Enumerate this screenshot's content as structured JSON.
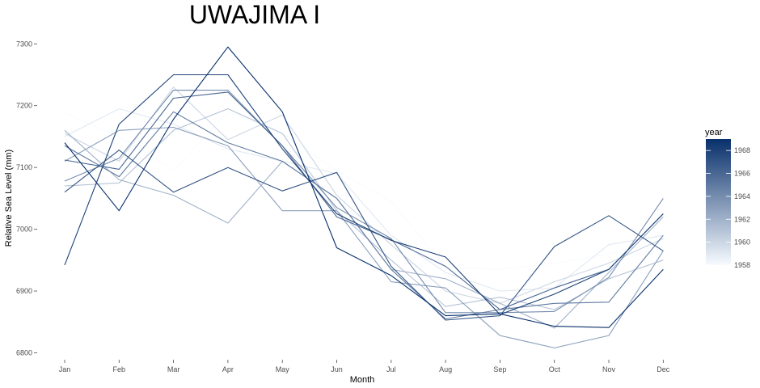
{
  "chart_data": {
    "type": "line",
    "title": "UWAJIMA I",
    "xlabel": "Month",
    "ylabel": "Relative Sea Level (mm)",
    "categories": [
      "Jan",
      "Feb",
      "Mar",
      "Apr",
      "May",
      "Jun",
      "Jul",
      "Aug",
      "Sep",
      "Oct",
      "Nov",
      "Dec"
    ],
    "ylim": [
      6790,
      7310
    ],
    "yticks": [
      6800,
      6900,
      7000,
      7100,
      7200,
      7300
    ],
    "grid": false,
    "legend": {
      "title": "year",
      "position": "right",
      "ticks": [
        1958,
        1960,
        1962,
        1964,
        1966,
        1968
      ],
      "range": [
        1958,
        1969
      ],
      "color_low": "#f7fbff",
      "color_high": "#08306b"
    },
    "series": [
      {
        "year": 1958,
        "values": [
          7188,
          7150,
          7095,
          7190,
          7155,
          7095,
          7045,
          6938,
          6935,
          6945,
          6960,
          6980
        ]
      },
      {
        "year": 1959,
        "values": [
          7150,
          7195,
          7170,
          7130,
          7110,
          7090,
          6990,
          6930,
          6900,
          6905,
          6975,
          6990
        ]
      },
      {
        "year": 1960,
        "values": [
          7155,
          7110,
          7230,
          7145,
          7185,
          7055,
          6975,
          6900,
          6880,
          6915,
          6945,
          6985
        ]
      },
      {
        "year": 1961,
        "values": [
          7070,
          7075,
          7160,
          7195,
          7155,
          7030,
          6950,
          6875,
          6890,
          6870,
          6920,
          6950
        ]
      },
      {
        "year": 1962,
        "values": [
          7160,
          7080,
          7055,
          7010,
          7110,
          7050,
          6935,
          6920,
          6880,
          6840,
          6930,
          7020
        ]
      },
      {
        "year": 1963,
        "values": [
          7110,
          7160,
          7165,
          7135,
          7030,
          7030,
          6915,
          6905,
          6828,
          6808,
          6828,
          6965
        ]
      },
      {
        "year": 1964,
        "values": [
          7078,
          7115,
          7225,
          7225,
          7135,
          7035,
          6985,
          6865,
          6865,
          6867,
          6922,
          7050
        ]
      },
      {
        "year": 1965,
        "values": [
          7135,
          7085,
          7190,
          7140,
          7110,
          7050,
          6935,
          6855,
          6870,
          6880,
          6882,
          6990
        ]
      },
      {
        "year": 1966,
        "values": [
          7112,
          7097,
          7212,
          7222,
          7135,
          7020,
          6983,
          6940,
          6870,
          6905,
          6935,
          7025
        ]
      },
      {
        "year": 1967,
        "values": [
          7060,
          7128,
          7060,
          7100,
          7062,
          7092,
          6940,
          6853,
          6860,
          6972,
          7022,
          6965
        ]
      },
      {
        "year": 1968,
        "values": [
          6942,
          7170,
          7250,
          7250,
          7130,
          7025,
          6982,
          6955,
          6862,
          6895,
          6935,
          7025
        ]
      },
      {
        "year": 1969,
        "values": [
          7140,
          7030,
          7178,
          7295,
          7190,
          6970,
          6925,
          6860,
          6863,
          6843,
          6841,
          6935
        ]
      }
    ]
  }
}
